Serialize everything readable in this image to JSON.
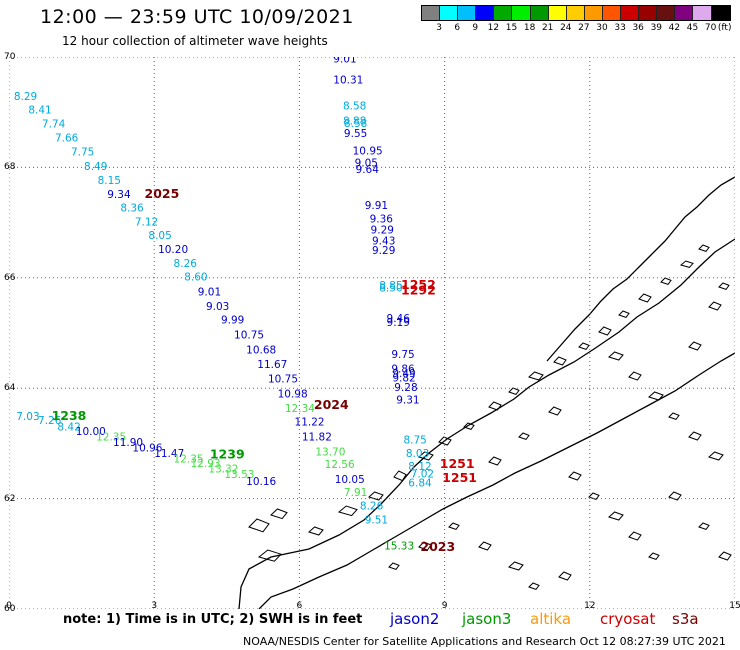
{
  "header": {
    "title": "12:00 — 23:59 UTC 10/09/2021",
    "subtitle": "12 hour collection of altimeter wave heights"
  },
  "legend": {
    "colors": [
      "#808080",
      "#00ffff",
      "#00bfff",
      "#0000ff",
      "#00aa00",
      "#00ee00",
      "#009900",
      "#ffff00",
      "#ffcc00",
      "#ff9900",
      "#ff5500",
      "#cc0000",
      "#990000",
      "#661010",
      "#800080",
      "#ddaaee",
      "#000000"
    ],
    "labels": [
      "3",
      "6",
      "9",
      "12",
      "15",
      "18",
      "21",
      "24",
      "27",
      "30",
      "33",
      "36",
      "39",
      "42",
      "45",
      "70",
      "(ft)"
    ]
  },
  "axes": {
    "y_ticks": [
      {
        "label": "70",
        "value": 70
      },
      {
        "label": "68",
        "value": 68
      },
      {
        "label": "66",
        "value": 66
      },
      {
        "label": "64",
        "value": 64
      },
      {
        "label": "62",
        "value": 62
      },
      {
        "label": "60",
        "value": 60
      }
    ],
    "x_ticks": [
      {
        "label": "0",
        "value": 0
      },
      {
        "label": "3",
        "value": 3
      },
      {
        "label": "6",
        "value": 6
      },
      {
        "label": "9",
        "value": 9
      },
      {
        "label": "12",
        "value": 12
      },
      {
        "label": "15",
        "value": 15
      }
    ],
    "lon_range": [
      0,
      15
    ],
    "lat_range": [
      60,
      70
    ]
  },
  "tracks": {
    "colors": {
      "jason2": "#0000cc",
      "jason3": "#009900",
      "altika": "#ff9900",
      "cryosat": "#cc0000",
      "s3a": "#770000",
      "light": "#00aadd",
      "pale": "#44dd44"
    },
    "points": [
      {
        "v": "9.01",
        "c": "jason2",
        "lon": 6.7,
        "lat": 69.9
      },
      {
        "v": "10.31",
        "c": "jason2",
        "lon": 6.7,
        "lat": 69.52
      },
      {
        "v": "8.58",
        "c": "light",
        "lon": 6.9,
        "lat": 69.05
      },
      {
        "v": "8.88",
        "c": "light",
        "lon": 6.9,
        "lat": 68.78
      },
      {
        "v": "8.58",
        "c": "light",
        "lon": 6.92,
        "lat": 68.73
      },
      {
        "v": "9.55",
        "c": "jason2",
        "lon": 6.92,
        "lat": 68.55
      },
      {
        "v": "10.95",
        "c": "jason2",
        "lon": 7.1,
        "lat": 68.23
      },
      {
        "v": "9.05",
        "c": "jason2",
        "lon": 7.14,
        "lat": 68.02
      },
      {
        "v": "9.64",
        "c": "jason2",
        "lon": 7.16,
        "lat": 67.9
      },
      {
        "v": "9.91",
        "c": "jason2",
        "lon": 7.35,
        "lat": 67.25
      },
      {
        "v": "9.36",
        "c": "jason2",
        "lon": 7.45,
        "lat": 67.0
      },
      {
        "v": "9.29",
        "c": "jason2",
        "lon": 7.47,
        "lat": 66.8
      },
      {
        "v": "9.43",
        "c": "jason2",
        "lon": 7.5,
        "lat": 66.6
      },
      {
        "v": "9.29",
        "c": "jason2",
        "lon": 7.5,
        "lat": 66.43
      },
      {
        "v": "8.85",
        "c": "light",
        "lon": 7.65,
        "lat": 65.8
      },
      {
        "v": "8.50",
        "c": "light",
        "lon": 7.65,
        "lat": 65.75
      },
      {
        "v": "9.46",
        "c": "jason2",
        "lon": 7.8,
        "lat": 65.2
      },
      {
        "v": "9.19",
        "c": "jason2",
        "lon": 7.8,
        "lat": 65.13
      },
      {
        "v": "9.75",
        "c": "jason2",
        "lon": 7.9,
        "lat": 64.55
      },
      {
        "v": "9.86",
        "c": "jason2",
        "lon": 7.9,
        "lat": 64.28
      },
      {
        "v": "9.49",
        "c": "jason2",
        "lon": 7.92,
        "lat": 64.2
      },
      {
        "v": "9.82",
        "c": "jason2",
        "lon": 7.92,
        "lat": 64.12
      },
      {
        "v": "9.28",
        "c": "jason2",
        "lon": 7.96,
        "lat": 63.95
      },
      {
        "v": "9.31",
        "c": "jason2",
        "lon": 8.0,
        "lat": 63.72
      },
      {
        "v": "8.75",
        "c": "light",
        "lon": 8.15,
        "lat": 63.0
      },
      {
        "v": "8.03",
        "c": "light",
        "lon": 8.2,
        "lat": 62.75
      },
      {
        "v": "8.12",
        "c": "light",
        "lon": 8.25,
        "lat": 62.52
      },
      {
        "v": "7.02",
        "c": "light",
        "lon": 8.3,
        "lat": 62.38
      },
      {
        "v": "6.84",
        "c": "light",
        "lon": 8.25,
        "lat": 62.22
      },
      {
        "v": "8.29",
        "c": "light",
        "lon": 0.1,
        "lat": 69.22
      },
      {
        "v": "8.41",
        "c": "light",
        "lon": 0.4,
        "lat": 68.98
      },
      {
        "v": "7.74",
        "c": "light",
        "lon": 0.68,
        "lat": 68.72
      },
      {
        "v": "7.66",
        "c": "light",
        "lon": 0.95,
        "lat": 68.47
      },
      {
        "v": "7.75",
        "c": "light",
        "lon": 1.28,
        "lat": 68.22
      },
      {
        "v": "8.49",
        "c": "light",
        "lon": 1.55,
        "lat": 67.95
      },
      {
        "v": "8.15",
        "c": "light",
        "lon": 1.83,
        "lat": 67.7
      },
      {
        "v": "9.34",
        "c": "jason2",
        "lon": 2.03,
        "lat": 67.45
      },
      {
        "v": "8.36",
        "c": "light",
        "lon": 2.3,
        "lat": 67.2
      },
      {
        "v": "7.12",
        "c": "light",
        "lon": 2.6,
        "lat": 66.95
      },
      {
        "v": "8.05",
        "c": "light",
        "lon": 2.88,
        "lat": 66.7
      },
      {
        "v": "10.20",
        "c": "jason2",
        "lon": 3.08,
        "lat": 66.45
      },
      {
        "v": "8.26",
        "c": "light",
        "lon": 3.4,
        "lat": 66.2
      },
      {
        "v": "8.60",
        "c": "light",
        "lon": 3.62,
        "lat": 65.95
      },
      {
        "v": "9.01",
        "c": "jason2",
        "lon": 3.9,
        "lat": 65.68
      },
      {
        "v": "9.03",
        "c": "jason2",
        "lon": 4.07,
        "lat": 65.42
      },
      {
        "v": "9.99",
        "c": "jason2",
        "lon": 4.38,
        "lat": 65.17
      },
      {
        "v": "10.75",
        "c": "jason2",
        "lon": 4.65,
        "lat": 64.9
      },
      {
        "v": "10.68",
        "c": "jason2",
        "lon": 4.9,
        "lat": 64.63
      },
      {
        "v": "11.67",
        "c": "jason2",
        "lon": 5.13,
        "lat": 64.37
      },
      {
        "v": "10.75",
        "c": "jason2",
        "lon": 5.35,
        "lat": 64.1
      },
      {
        "v": "10.98",
        "c": "jason2",
        "lon": 5.55,
        "lat": 63.83
      },
      {
        "v": "12.34",
        "c": "pale",
        "lon": 5.7,
        "lat": 63.57
      },
      {
        "v": "11.22",
        "c": "jason2",
        "lon": 5.9,
        "lat": 63.32
      },
      {
        "v": "11.82",
        "c": "jason2",
        "lon": 6.05,
        "lat": 63.05
      },
      {
        "v": "13.70",
        "c": "pale",
        "lon": 6.33,
        "lat": 62.78
      },
      {
        "v": "12.56",
        "c": "pale",
        "lon": 6.52,
        "lat": 62.55
      },
      {
        "v": "10.05",
        "c": "jason2",
        "lon": 6.73,
        "lat": 62.28
      },
      {
        "v": "7.91",
        "c": "pale",
        "lon": 6.92,
        "lat": 62.05
      },
      {
        "v": "8.26",
        "c": "light",
        "lon": 7.25,
        "lat": 61.8
      },
      {
        "v": "9.51",
        "c": "light",
        "lon": 7.35,
        "lat": 61.55
      },
      {
        "v": "15.33",
        "c": "jason3",
        "lon": 7.75,
        "lat": 61.08
      },
      {
        "v": "7.03",
        "c": "light",
        "lon": 0.15,
        "lat": 63.42
      },
      {
        "v": "7.26",
        "c": "light",
        "lon": 0.6,
        "lat": 63.35
      },
      {
        "v": "8.42",
        "c": "light",
        "lon": 1.0,
        "lat": 63.23
      },
      {
        "v": "10.00",
        "c": "jason2",
        "lon": 1.38,
        "lat": 63.15
      },
      {
        "v": "12.35",
        "c": "pale",
        "lon": 1.8,
        "lat": 63.05
      },
      {
        "v": "11.90",
        "c": "jason2",
        "lon": 2.15,
        "lat": 62.95
      },
      {
        "v": "10.96",
        "c": "jason2",
        "lon": 2.55,
        "lat": 62.85
      },
      {
        "v": "11.47",
        "c": "jason2",
        "lon": 3.0,
        "lat": 62.75
      },
      {
        "v": "12.35",
        "c": "pale",
        "lon": 3.4,
        "lat": 62.65
      },
      {
        "v": "12.93",
        "c": "pale",
        "lon": 3.75,
        "lat": 62.57
      },
      {
        "v": "13.32",
        "c": "pale",
        "lon": 4.12,
        "lat": 62.47
      },
      {
        "v": "13.53",
        "c": "pale",
        "lon": 4.45,
        "lat": 62.37
      },
      {
        "v": "10.16",
        "c": "jason2",
        "lon": 4.9,
        "lat": 62.25
      }
    ],
    "markers": [
      {
        "v": "2025",
        "c": "s3a",
        "lon": 2.8,
        "lat": 67.45
      },
      {
        "v": "1252",
        "c": "cryosat",
        "lon": 8.1,
        "lat": 65.8
      },
      {
        "v": "1292",
        "c": "cryosat",
        "lon": 8.1,
        "lat": 65.7
      },
      {
        "v": "2024",
        "c": "s3a",
        "lon": 6.3,
        "lat": 63.62
      },
      {
        "v": "1251",
        "c": "cryosat",
        "lon": 8.9,
        "lat": 62.55
      },
      {
        "v": "1251",
        "c": "cryosat",
        "lon": 8.95,
        "lat": 62.3
      },
      {
        "v": "1238",
        "c": "jason3",
        "lon": 0.88,
        "lat": 63.42
      },
      {
        "v": "1239",
        "c": "jason3",
        "lon": 4.15,
        "lat": 62.73
      },
      {
        "v": "2023",
        "c": "s3a",
        "lon": 8.5,
        "lat": 61.05
      }
    ]
  },
  "footer": {
    "note": "note: 1) Time is in UTC; 2) SWH is in feet",
    "satellites": [
      {
        "label": "jason2",
        "color": "#0000cc"
      },
      {
        "label": "jason3",
        "color": "#009900"
      },
      {
        "label": "altika",
        "color": "#ff9900"
      },
      {
        "label": "cryosat",
        "color": "#cc0000"
      },
      {
        "label": "s3a",
        "color": "#770000"
      }
    ],
    "credit": "NOAA/NESDIS Center for Satellite Applications and Research    Oct 12 08:27:39 UTC 2021"
  }
}
